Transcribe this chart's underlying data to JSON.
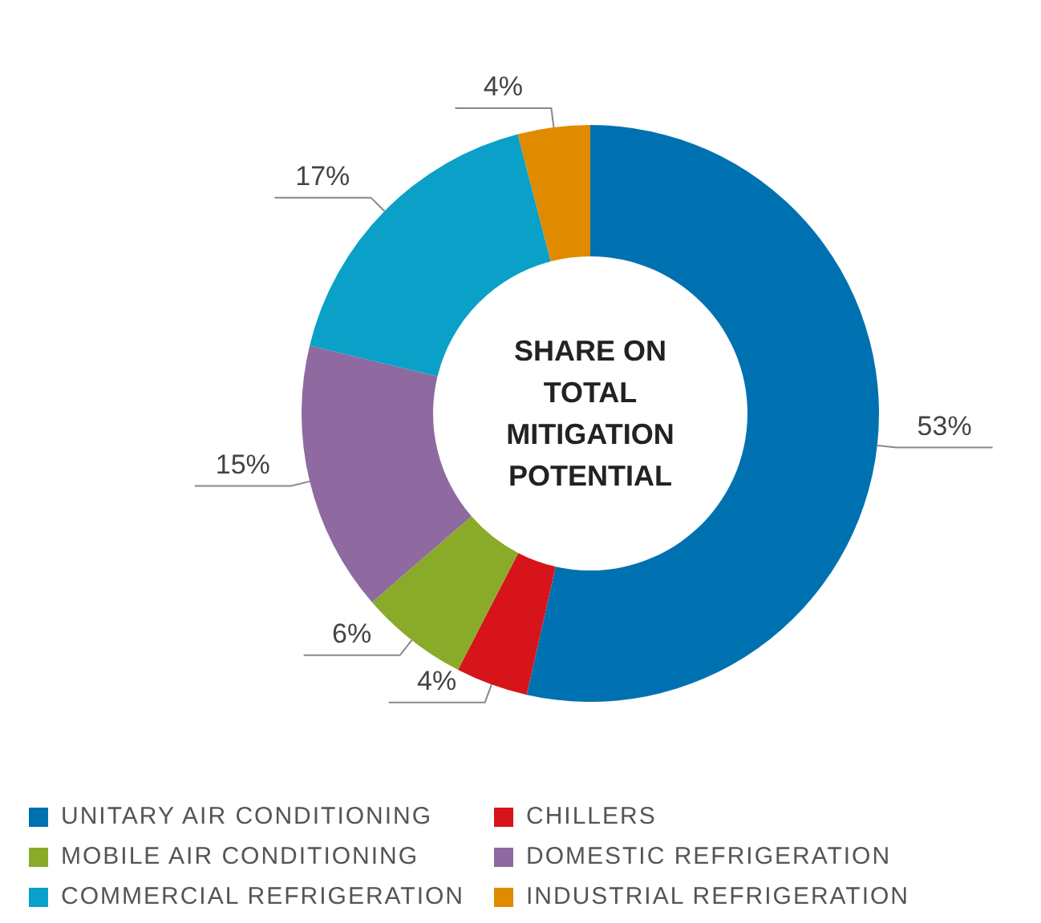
{
  "chart_data": {
    "type": "donut",
    "title": "SHARE ON TOTAL MITIGATION POTENTIAL",
    "categories": [
      "UNITARY AIR CONDITIONING",
      "CHILLERS",
      "MOBILE AIR CONDITIONING",
      "DOMESTIC REFRIGERATION",
      "COMMERCIAL REFRIGERATION",
      "INDUSTRIAL REFRIGERATION"
    ],
    "values": [
      53,
      4,
      6,
      15,
      17,
      4
    ],
    "value_labels": [
      "53%",
      "4%",
      "6%",
      "15%",
      "17%",
      "4%"
    ],
    "colors": [
      "#0071b0",
      "#d7141a",
      "#8aab2a",
      "#8e6aa0",
      "#0aa0c8",
      "#e08a00"
    ],
    "legend": "bottom"
  }
}
